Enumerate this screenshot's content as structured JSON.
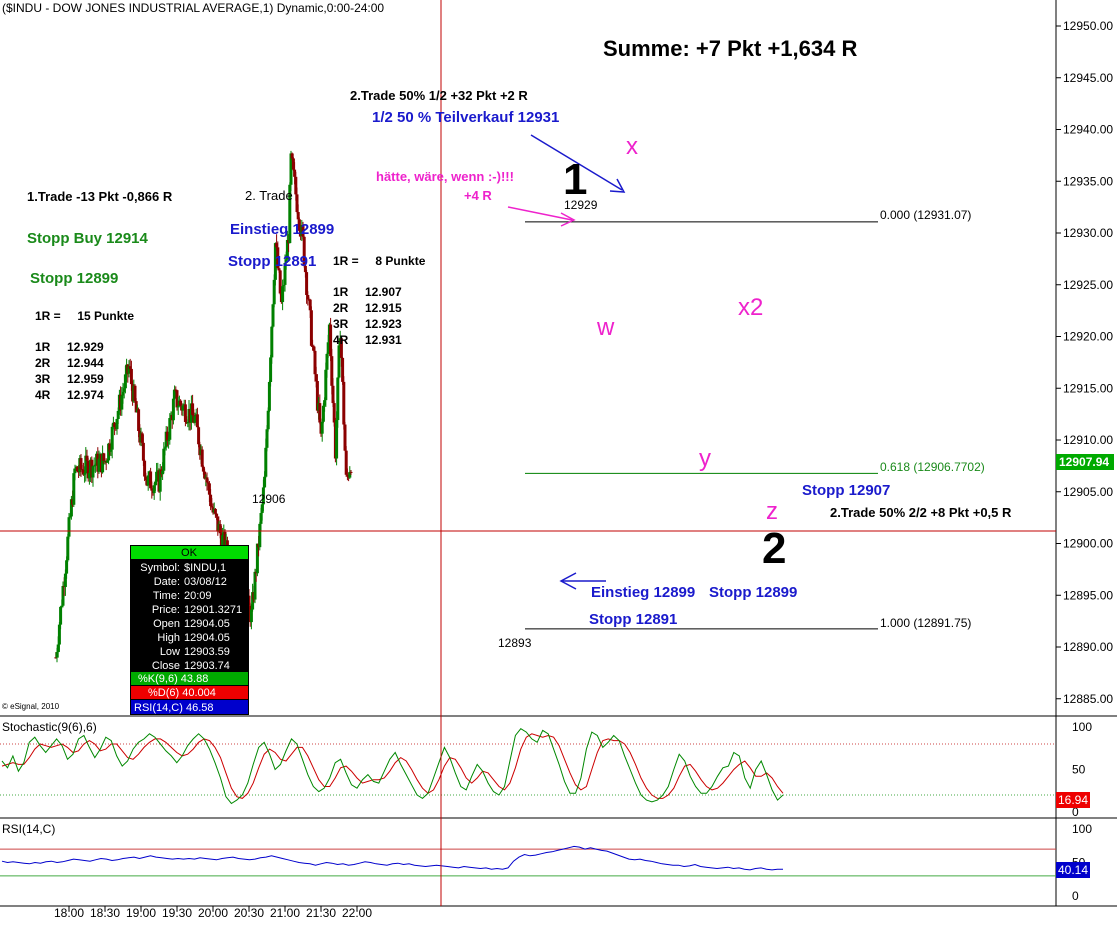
{
  "header": {
    "title": "($INDU - DOW JONES INDUSTRIAL AVERAGE,1) Dynamic,0:00-24:00"
  },
  "summary": {
    "text": "Summe: +7 Pkt +1,634 R"
  },
  "annotations": {
    "trade1_title": "1.Trade -13 Pkt -0,866 R",
    "trade2_title": "2. Trade",
    "stopp_buy": "Stopp Buy 12914",
    "stopp_1": "Stopp 12899",
    "einstieg_left": "Einstieg 12899",
    "stopp_left": "Stopp 12891",
    "r_left": "1R =     15 Punkte",
    "r_left_rows": [
      {
        "r": "1R",
        "v": "12.929"
      },
      {
        "r": "2R",
        "v": "12.944"
      },
      {
        "r": "3R",
        "v": "12.959"
      },
      {
        "r": "4R",
        "v": "12.974"
      }
    ],
    "r_mid": "1R =     8 Punkte",
    "r_mid_rows": [
      {
        "r": "1R",
        "v": "12.907"
      },
      {
        "r": "2R",
        "v": "12.915"
      },
      {
        "r": "3R",
        "v": "12.923"
      },
      {
        "r": "4R",
        "v": "12.931"
      }
    ],
    "trade2_half": "2.Trade 50% 1/2 +32 Pkt +2 R",
    "teilverkauf": "1/2 50 % Teilverkauf 12931",
    "haette": "hätte, wäre, wenn :-)!!!",
    "plus4r": "+4 R",
    "wave1": "1",
    "wave2": "2",
    "wave_x": "x",
    "wave_w": "w",
    "wave_y": "y",
    "wave_x2": "x2",
    "wave_z": "z",
    "lbl_12929": "12929",
    "lbl_12906": "12906",
    "lbl_12893": "12893",
    "stopp_12907": "Stopp 12907",
    "trade2_second": "2.Trade 50% 2/2 +8 Pkt +0,5 R",
    "einstieg_bottom": "Einstieg 12899",
    "stopp_bottom_right": "Stopp 12899",
    "stopp_bottom": "Stopp 12891",
    "fib_0": "0.000 (12931.07)",
    "fib_618": "0.618 (12906.7702)",
    "fib_1": "1.000 (12891.75)",
    "copyright": "© eSignal, 2010"
  },
  "price_axis": {
    "ticks": [
      "12950.00",
      "12945.00",
      "12940.00",
      "12935.00",
      "12930.00",
      "12925.00",
      "12920.00",
      "12915.00",
      "12910.00",
      "12905.00",
      "12900.00",
      "12895.00",
      "12890.00",
      "12885.00"
    ],
    "current_price": "12907.94"
  },
  "time_axis": {
    "ticks": [
      "18:00",
      "18:30",
      "19:00",
      "19:30",
      "20:00",
      "20:30",
      "21:00",
      "21:30",
      "22:00"
    ]
  },
  "info_box": {
    "status": "OK",
    "rows": [
      {
        "k": "Symbol:",
        "v": "$INDU,1"
      },
      {
        "k": "Date:",
        "v": "03/08/12"
      },
      {
        "k": "Time:",
        "v": "20:09"
      },
      {
        "k": "Price:",
        "v": "12901.3271"
      },
      {
        "k": "Open",
        "v": "12904.05"
      },
      {
        "k": "High",
        "v": "12904.05"
      },
      {
        "k": "Low",
        "v": "12903.59"
      },
      {
        "k": "Close",
        "v": "12903.74"
      }
    ],
    "k_line": "%K(9,6) 43.88",
    "d_line": "%D(6) 40.004",
    "rsi_line": "RSI(14,C) 46.58"
  },
  "stochastic": {
    "title": "Stochastic(9(6),6)",
    "ticks": [
      "100",
      "50",
      "0"
    ],
    "current": "16.94"
  },
  "rsi": {
    "title": "RSI(14,C)",
    "ticks": [
      "100",
      "50",
      "0"
    ],
    "current": "40.14"
  },
  "colors": {
    "up": "#008000",
    "down": "#8b0000",
    "crosshair": "#c00000",
    "blue_text": "#1a1acc",
    "green_text": "#1a8a1a",
    "magenta": "#ee22cc",
    "price_badge": "#00aa00",
    "stoch_badge": "#ee0000",
    "rsi_badge": "#0000cc"
  },
  "chart_data": {
    "type": "candlestick",
    "symbol": "$INDU",
    "interval": "1",
    "date": "03/08/12",
    "xlabel": "",
    "ylabel": "",
    "ylim": [
      12883,
      12953
    ],
    "key_points": [
      {
        "time": "17:49",
        "price": 12889
      },
      {
        "time": "18:05",
        "price": 12907
      },
      {
        "time": "18:30",
        "price": 12908
      },
      {
        "time": "18:50",
        "price": 12917
      },
      {
        "time": "19:05",
        "price": 12906
      },
      {
        "time": "19:15",
        "price": 12906
      },
      {
        "time": "19:28",
        "price": 12914
      },
      {
        "time": "19:45",
        "price": 12912
      },
      {
        "time": "20:00",
        "price": 12903
      },
      {
        "time": "20:15",
        "price": 12898
      },
      {
        "time": "20:32",
        "price": 12893
      },
      {
        "time": "20:43",
        "price": 12906
      },
      {
        "time": "20:52",
        "price": 12929
      },
      {
        "time": "20:57",
        "price": 12923
      },
      {
        "time": "21:03",
        "price": 12930
      },
      {
        "time": "21:05",
        "price": 12937
      },
      {
        "time": "21:15",
        "price": 12929
      },
      {
        "time": "21:30",
        "price": 12910
      },
      {
        "time": "21:37",
        "price": 12921
      },
      {
        "time": "21:42",
        "price": 12909
      },
      {
        "time": "21:46",
        "price": 12921
      },
      {
        "time": "21:51",
        "price": 12906
      },
      {
        "time": "21:55",
        "price": 12908
      }
    ],
    "fib_levels": [
      {
        "ratio": "0.000",
        "price": 12931.07
      },
      {
        "ratio": "0.618",
        "price": 12906.7702
      },
      {
        "ratio": "1.000",
        "price": 12891.75
      }
    ]
  },
  "stoch_data": {
    "k": [
      60,
      52,
      66,
      48,
      58,
      82,
      88,
      78,
      70,
      78,
      86,
      78,
      62,
      68,
      86,
      90,
      76,
      64,
      74,
      88,
      84,
      66,
      54,
      60,
      74,
      82,
      86,
      92,
      88,
      80,
      72,
      66,
      58,
      66,
      78,
      86,
      92,
      86,
      74,
      58,
      40,
      18,
      10,
      14,
      20,
      34,
      56,
      76,
      82,
      68,
      50,
      56,
      72,
      86,
      80,
      62,
      44,
      30,
      24,
      28,
      40,
      58,
      62,
      46,
      32,
      28,
      38,
      44,
      36,
      34,
      48,
      62,
      70,
      56,
      44,
      32,
      20,
      16,
      22,
      40,
      58,
      76,
      64,
      46,
      30,
      26,
      42,
      56,
      48,
      34,
      24,
      20,
      30,
      60,
      90,
      98,
      94,
      86,
      82,
      96,
      92,
      74,
      56,
      36,
      22,
      22,
      40,
      74,
      94,
      90,
      76,
      82,
      90,
      84,
      66,
      50,
      34,
      20,
      14,
      12,
      14,
      20,
      30,
      50,
      68,
      60,
      42,
      30,
      22,
      22,
      30,
      42,
      52,
      54,
      70,
      66,
      40,
      28,
      50,
      60,
      44,
      26,
      14,
      20
    ],
    "d": [
      54,
      56,
      58,
      56,
      56,
      64,
      74,
      80,
      78,
      76,
      78,
      80,
      76,
      70,
      72,
      80,
      84,
      80,
      72,
      74,
      80,
      80,
      72,
      64,
      62,
      68,
      76,
      82,
      86,
      86,
      82,
      76,
      70,
      66,
      68,
      74,
      82,
      86,
      84,
      76,
      64,
      46,
      28,
      18,
      16,
      22,
      34,
      52,
      68,
      74,
      70,
      62,
      60,
      68,
      76,
      76,
      66,
      52,
      38,
      30,
      30,
      40,
      52,
      54,
      48,
      40,
      34,
      36,
      38,
      38,
      40,
      48,
      58,
      64,
      60,
      50,
      38,
      28,
      22,
      26,
      38,
      54,
      64,
      62,
      52,
      40,
      34,
      40,
      48,
      46,
      38,
      30,
      26,
      34,
      52,
      74,
      88,
      92,
      90,
      88,
      90,
      88,
      78,
      62,
      46,
      32,
      26,
      30,
      50,
      70,
      84,
      86,
      84,
      84,
      80,
      70,
      56,
      40,
      28,
      20,
      16,
      16,
      20,
      28,
      42,
      54,
      56,
      48,
      38,
      30,
      26,
      28,
      34,
      42,
      50,
      56,
      60,
      52,
      42,
      42,
      46,
      40,
      30,
      22
    ]
  },
  "rsi_data": {
    "values": [
      52,
      50,
      51,
      50,
      49,
      48,
      50,
      49,
      51,
      52,
      50,
      51,
      53,
      55,
      54,
      53,
      52,
      54,
      56,
      55,
      53,
      54,
      56,
      57,
      58,
      56,
      58,
      60,
      58,
      57,
      56,
      55,
      56,
      55,
      56,
      55,
      57,
      56,
      55,
      54,
      56,
      57,
      58,
      56,
      55,
      54,
      55,
      57,
      58,
      60,
      58,
      56,
      54,
      52,
      50,
      49,
      48,
      46,
      48,
      50,
      49,
      47,
      48,
      46,
      47,
      49,
      51,
      50,
      48,
      47,
      46,
      48,
      49,
      47,
      48,
      46,
      45,
      44,
      45,
      46,
      45,
      44,
      43,
      42,
      44,
      43,
      42,
      41,
      42,
      40,
      41,
      40,
      42,
      52,
      58,
      62,
      60,
      61,
      63,
      65,
      66,
      68,
      70,
      72,
      74,
      73,
      70,
      72,
      70,
      68,
      67,
      64,
      61,
      58,
      55,
      54,
      55,
      53,
      52,
      50,
      48,
      47,
      46,
      46,
      44,
      45,
      47,
      44,
      43,
      42,
      41,
      42,
      43,
      41,
      42,
      40,
      39,
      41,
      42,
      40,
      39,
      40,
      40
    ]
  }
}
